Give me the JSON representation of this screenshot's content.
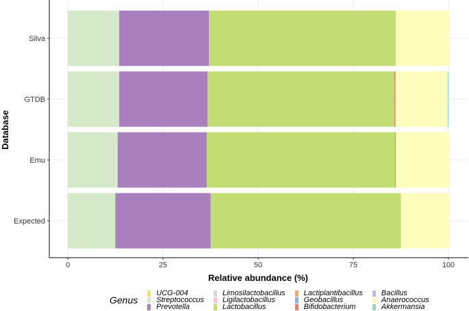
{
  "chart_data": {
    "type": "bar",
    "orientation": "horizontal",
    "stacked": true,
    "xlabel": "Relative abundance (%)",
    "ylabel": "Database",
    "xlim": [
      0,
      100
    ],
    "xticks": [
      "0",
      "25",
      "50",
      "75",
      "100"
    ],
    "categories": [
      "Silva",
      "GTDB",
      "Emu",
      "Expected"
    ],
    "grid": true,
    "legend_title": "Genus",
    "legend_position": "bottom",
    "series": [
      {
        "name": "UCG-004",
        "color": "#f5e15c",
        "values": [
          0.2,
          0,
          0,
          0
        ]
      },
      {
        "name": "Streptococcus",
        "color": "#d5e8c8",
        "values": [
          13.3,
          13.5,
          13.1,
          12.5
        ]
      },
      {
        "name": "Prevotella",
        "color": "#a97fbd",
        "values": [
          23.6,
          23.2,
          23.4,
          25
        ]
      },
      {
        "name": "Limosilactobacillus",
        "color": "#d9d9d9",
        "values": [
          0,
          0,
          0,
          0
        ]
      },
      {
        "name": "Ligilactobacillus",
        "color": "#f2c8e0",
        "values": [
          0,
          0,
          0,
          0
        ]
      },
      {
        "name": "Lactobacillus",
        "color": "#c2dd74",
        "values": [
          49.1,
          49.1,
          49.5,
          50
        ]
      },
      {
        "name": "Lactiplantibacillus",
        "color": "#eaaa5e",
        "values": [
          0,
          0,
          0,
          0
        ]
      },
      {
        "name": "Geobacillus",
        "color": "#8db3d9",
        "values": [
          0,
          0,
          0,
          0
        ]
      },
      {
        "name": "Bifidobacterium",
        "color": "#e47b6f",
        "values": [
          0,
          0.3,
          0.2,
          0
        ]
      },
      {
        "name": "Bacillus",
        "color": "#bdb9db",
        "values": [
          0,
          0,
          0,
          0
        ]
      },
      {
        "name": "Anaerococcus",
        "color": "#fefdbb",
        "values": [
          13.8,
          13.7,
          13.8,
          12.5
        ]
      },
      {
        "name": "Akkermansia",
        "color": "#9ed3c1",
        "values": [
          0,
          0.2,
          0,
          0
        ]
      }
    ]
  }
}
